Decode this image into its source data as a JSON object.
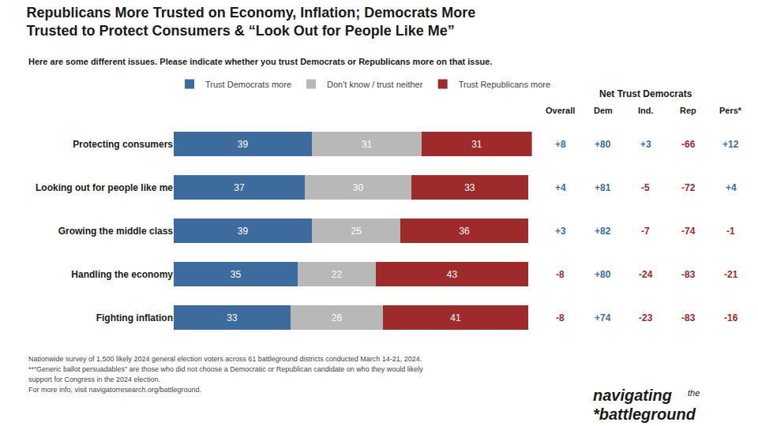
{
  "chart_data": {
    "type": "bar",
    "orientation": "horizontal",
    "stacked": true,
    "data_labels": true,
    "tick_labels": "y",
    "grid": false,
    "legend": "top",
    "title": "Republicans More Trusted on Economy, Inflation; Democrats More\nTrusted to Protect Consumers & “Look Out for People Like Me”",
    "subtitle": "Here are some different issues. Please indicate whether you trust Democrats or Republicans more on that issue.",
    "categories": [
      "Protecting consumers",
      "Looking out for people like me",
      "Growing the middle class",
      "Handling the economy",
      "Fighting inflation"
    ],
    "series": [
      {
        "name": "Trust Democrats more",
        "color": "#3d6b9e",
        "values": [
          39,
          37,
          39,
          35,
          33
        ]
      },
      {
        "name": "Don't know / trust neither",
        "color": "#b8b8b8",
        "values": [
          31,
          30,
          25,
          22,
          26
        ]
      },
      {
        "name": "Trust Republicans more",
        "color": "#9e2a2b",
        "values": [
          31,
          33,
          36,
          43,
          41
        ]
      }
    ],
    "xlim": [
      0,
      101
    ],
    "net_trust": {
      "title": "Net Trust Democrats",
      "columns": [
        {
          "name": "Overall",
          "values": [
            8,
            4,
            3,
            -8,
            -8
          ],
          "value_labels": [
            "+8",
            "+4",
            "+3",
            "-8",
            "-8"
          ]
        },
        {
          "name": "Dem",
          "values": [
            80,
            81,
            82,
            80,
            74
          ],
          "value_labels": [
            "+80",
            "+81",
            "+82",
            "+80",
            "+74"
          ]
        },
        {
          "name": "Ind.",
          "values": [
            3,
            -5,
            -7,
            -24,
            -23
          ],
          "value_labels": [
            "+3",
            "-5",
            "-7",
            "-24",
            "-23"
          ]
        },
        {
          "name": "Rep",
          "values": [
            -66,
            -72,
            -74,
            -83,
            -83
          ],
          "value_labels": [
            "-66",
            "-72",
            "-74",
            "-83",
            "-83"
          ]
        },
        {
          "name": "Pers*",
          "values": [
            12,
            4,
            -1,
            -21,
            -16
          ],
          "value_labels": [
            "+12",
            "+4",
            "-1",
            "-21",
            "-16"
          ]
        }
      ]
    },
    "footnotes": [
      "Nationwide survey of 1,500 likely 2024 general election voters across 61 battleground districts conducted March 14-21, 2024.",
      "**“Generic ballot persuadables” are those who did not choose a Democratic or Republican candidate on who they would likely",
      "support for Congress in the 2024 election.",
      "For more info, visit navigatorresearch.org/battleground."
    ],
    "logo": [
      "navigating",
      "the",
      "*battleground"
    ]
  }
}
